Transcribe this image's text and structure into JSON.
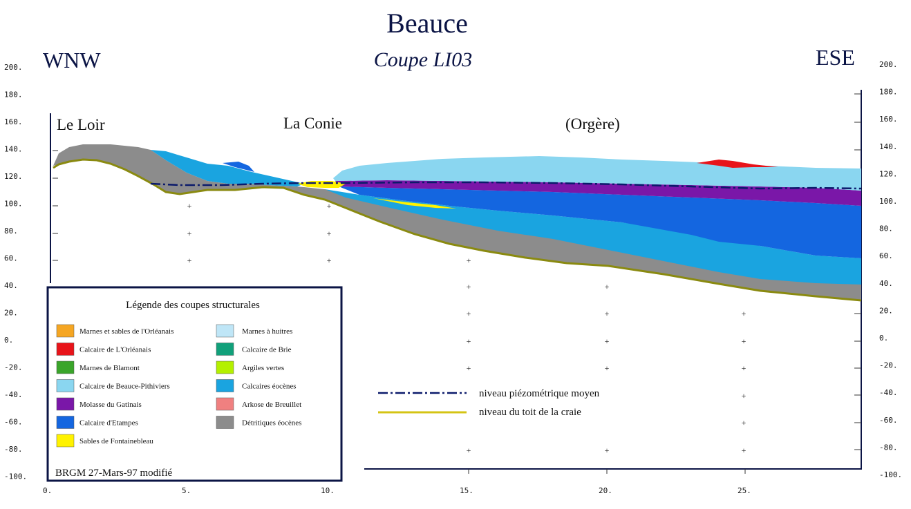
{
  "title": "Beauce",
  "subtitle": "Coupe LI03",
  "direction_left": "WNW",
  "direction_right": "ESE",
  "places": {
    "left": "Le Loir",
    "middle": "La Conie",
    "right": "(Orgère)"
  },
  "y_axis_ticks": [
    "200.",
    "180.",
    "160.",
    "140.",
    "120.",
    "100.",
    "80.",
    "60.",
    "40.",
    "20.",
    "0.",
    "-20.",
    "-40.",
    "-60.",
    "-80.",
    "-100."
  ],
  "x_axis_ticks": [
    "0.",
    "5.",
    "10.",
    "15.",
    "20.",
    "25."
  ],
  "legend": {
    "title": "Légende des coupes structurales",
    "items": [
      {
        "label": "Marnes et sables de l'Orléanais",
        "color": "#f5a623"
      },
      {
        "label": "Calcaire de L'Orléanais",
        "color": "#e8141a"
      },
      {
        "label": "Marnes de Blamont",
        "color": "#3aa52a"
      },
      {
        "label": "Calcaire de Beauce-Pithiviers",
        "color": "#8ad6f0"
      },
      {
        "label": "Molasse du Gatinais",
        "color": "#7a17a8"
      },
      {
        "label": "Calcaire d'Etampes",
        "color": "#1466e0"
      },
      {
        "label": "Sables de Fontainebleau",
        "color": "#fff200"
      },
      {
        "label": "Marnes à huitres",
        "color": "#bfe6f7"
      },
      {
        "label": "Calcaire de Brie",
        "color": "#11a07a"
      },
      {
        "label": "Argiles vertes",
        "color": "#b4f000"
      },
      {
        "label": "Calcaires éocènes",
        "color": "#1aa4e0"
      },
      {
        "label": "Arkose de Breuillet",
        "color": "#f08080"
      },
      {
        "label": "Détritiques éocènes",
        "color": "#8c8c8c"
      }
    ],
    "credit": "BRGM 27-Mars-97 modifié"
  },
  "lines_legend": {
    "piezo": "niveau piézométrique moyen",
    "craie": "niveau du toit de la craie"
  },
  "colors": {
    "title": "#0b1445",
    "frame": "#0b1445",
    "piezo_line": "#0b1a6b",
    "craie_line": "#8a8a10",
    "craie_legend": "#d4c414"
  }
}
